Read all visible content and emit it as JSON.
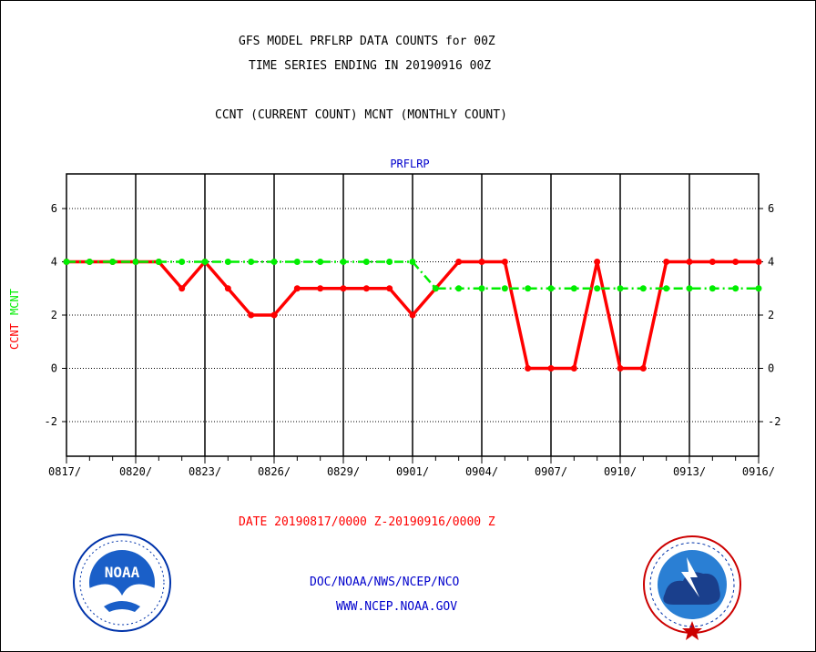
{
  "header": {
    "title_line1": "GFS MODEL PRFLRP DATA COUNTS for 00Z",
    "title_line2": "TIME SERIES ENDING IN 20190916 00Z",
    "subtitle": "CCNT (CURRENT COUNT) MCNT (MONTHLY COUNT)"
  },
  "footer": {
    "date_range": "DATE 20190817/0000 Z-20190916/0000 Z",
    "org": "DOC/NOAA/NWS/NCEP/NCO",
    "url": "WWW.NCEP.NOAA.GOV"
  },
  "logos": {
    "left": {
      "text": "NOAA",
      "ring_text": "NATIONAL OCEANIC AND ATMOSPHERIC ADMINISTRATION · U.S. DEPARTMENT OF COMMERCE"
    },
    "right": {
      "ring_text": "NATIONAL WEATHER SERVICE"
    }
  },
  "colors": {
    "ccnt": "#ff0000",
    "mcnt": "#00ee00",
    "title_blue": "#0000cc",
    "footer_red": "#ff0000",
    "footer_blue": "#0000cc"
  },
  "chart_data": {
    "type": "line",
    "title": "PRFLRP",
    "ylabel_parts": [
      {
        "text": "CCNT",
        "color": "#ff0000"
      },
      {
        "text": "MCNT",
        "color": "#00ee00"
      }
    ],
    "ylim": [
      -3.3,
      7.3
    ],
    "yticks": [
      -2,
      0,
      2,
      4,
      6
    ],
    "x_tick_labels": [
      "0817/",
      "0820/",
      "0823/",
      "0826/",
      "0829/",
      "0901/",
      "0904/",
      "0907/",
      "0910/",
      "0913/",
      "0916/"
    ],
    "x_dates": [
      "0817",
      "0818",
      "0819",
      "0820",
      "0821",
      "0822",
      "0823",
      "0824",
      "0825",
      "0826",
      "0827",
      "0828",
      "0829",
      "0830",
      "0831",
      "0901",
      "0902",
      "0903",
      "0904",
      "0905",
      "0906",
      "0907",
      "0908",
      "0909",
      "0910",
      "0911",
      "0912",
      "0913",
      "0914",
      "0915",
      "0916"
    ],
    "grid": true,
    "series": [
      {
        "name": "CCNT",
        "color": "#ff0000",
        "style": "solid",
        "values": [
          4,
          4,
          4,
          4,
          4,
          3,
          4,
          3,
          2,
          2,
          3,
          3,
          3,
          3,
          3,
          2,
          3,
          4,
          4,
          4,
          0,
          0,
          0,
          4,
          0,
          0,
          4,
          4,
          4,
          4,
          4
        ]
      },
      {
        "name": "MCNT",
        "color": "#00ee00",
        "style": "dashed",
        "values": [
          4,
          4,
          4,
          4,
          4,
          4,
          4,
          4,
          4,
          4,
          4,
          4,
          4,
          4,
          4,
          4,
          3,
          3,
          3,
          3,
          3,
          3,
          3,
          3,
          3,
          3,
          3,
          3,
          3,
          3,
          3
        ]
      }
    ]
  }
}
